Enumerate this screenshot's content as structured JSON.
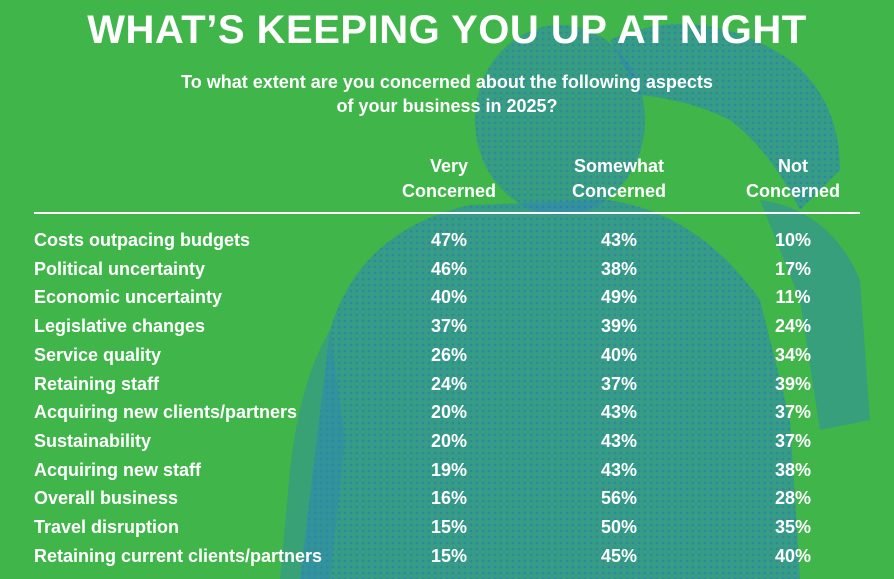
{
  "title": "WHAT’S KEEPING YOU UP AT NIGHT",
  "subtitle_line1": "To what extent are you concerned about the following aspects",
  "subtitle_line2": "of your business in 2025?",
  "colors": {
    "background": "#3fb54a",
    "figure_tint": "#2f86b8",
    "text": "#ffffff"
  },
  "columns": [
    {
      "line1": "Very",
      "line2": "Concerned"
    },
    {
      "line1": "Somewhat",
      "line2": "Concerned"
    },
    {
      "line1": "Not",
      "line2": "Concerned"
    }
  ],
  "chart_data": {
    "type": "table",
    "title": "WHAT’S KEEPING YOU UP AT NIGHT",
    "subtitle": "To what extent are you concerned about the following aspects of your business in 2025?",
    "columns": [
      "Very Concerned",
      "Somewhat Concerned",
      "Not Concerned"
    ],
    "rows": [
      {
        "label": "Costs outpacing budgets",
        "values": [
          "47%",
          "43%",
          "10%"
        ]
      },
      {
        "label": "Political uncertainty",
        "values": [
          "46%",
          "38%",
          "17%"
        ]
      },
      {
        "label": "Economic uncertainty",
        "values": [
          "40%",
          "49%",
          "11%"
        ]
      },
      {
        "label": "Legislative changes",
        "values": [
          "37%",
          "39%",
          "24%"
        ]
      },
      {
        "label": "Service quality",
        "values": [
          "26%",
          "40%",
          "34%"
        ]
      },
      {
        "label": "Retaining staff",
        "values": [
          "24%",
          "37%",
          "39%"
        ]
      },
      {
        "label": "Acquiring new clients/partners",
        "values": [
          "20%",
          "43%",
          "37%"
        ]
      },
      {
        "label": "Sustainability",
        "values": [
          "20%",
          "43%",
          "37%"
        ]
      },
      {
        "label": "Acquiring new staff",
        "values": [
          "19%",
          "43%",
          "38%"
        ]
      },
      {
        "label": "Overall business",
        "values": [
          "16%",
          "56%",
          "28%"
        ]
      },
      {
        "label": "Travel disruption",
        "values": [
          "15%",
          "50%",
          "35%"
        ]
      },
      {
        "label": "Retaining current clients/partners",
        "values": [
          "15%",
          "45%",
          "40%"
        ]
      }
    ]
  }
}
